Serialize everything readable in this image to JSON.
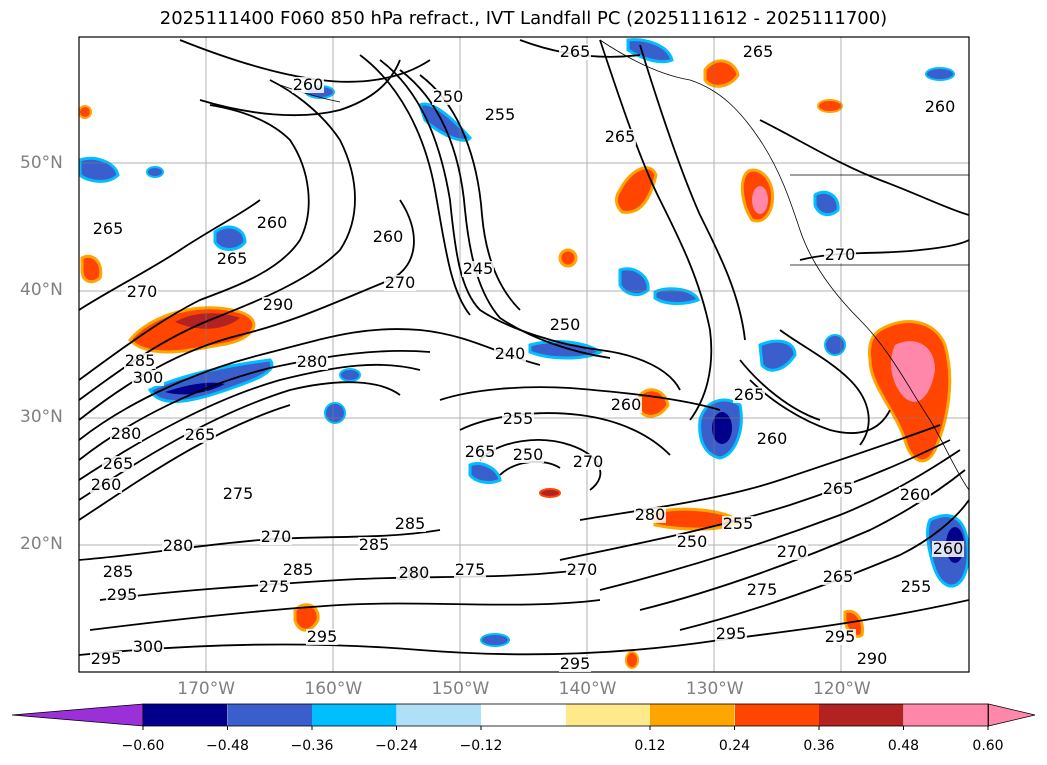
{
  "title": "2025111400 F060 850 hPa refract., IVT Landfall PC (2025111612 - 2025111700)",
  "map": {
    "lat_labels": [
      {
        "text": "50°N",
        "lat": 50
      },
      {
        "text": "40°N",
        "lat": 40
      },
      {
        "text": "30°N",
        "lat": 30
      },
      {
        "text": "20°N",
        "lat": 20
      }
    ],
    "lon_labels": [
      {
        "text": "170°W",
        "lon": -170
      },
      {
        "text": "160°W",
        "lon": -160
      },
      {
        "text": "150°W",
        "lon": -150
      },
      {
        "text": "140°W",
        "lon": -140
      },
      {
        "text": "130°W",
        "lon": -130
      },
      {
        "text": "120°W",
        "lon": -120
      }
    ],
    "contour_labels": [
      {
        "text": "265",
        "pos": "top-center-right"
      },
      {
        "text": "265",
        "pos": "top-right"
      },
      {
        "text": "260",
        "pos": "aleutians"
      },
      {
        "text": "250",
        "pos": "gulf-of-alaska"
      },
      {
        "text": "255",
        "pos": "gulf-of-alaska"
      },
      {
        "text": "265",
        "pos": "alaska-panhandle"
      },
      {
        "text": "260",
        "pos": "top-right-edge"
      },
      {
        "text": "265",
        "pos": "west-edge"
      },
      {
        "text": "260",
        "pos": "west"
      },
      {
        "text": "265",
        "pos": "west"
      },
      {
        "text": "260",
        "pos": "center-north"
      },
      {
        "text": "270",
        "pos": "center-north"
      },
      {
        "text": "245",
        "pos": "center"
      },
      {
        "text": "270",
        "pos": "west"
      },
      {
        "text": "290",
        "pos": "west"
      },
      {
        "text": "250",
        "pos": "center"
      },
      {
        "text": "240",
        "pos": "center"
      },
      {
        "text": "270",
        "pos": "east"
      },
      {
        "text": "280",
        "pos": "west"
      },
      {
        "text": "285",
        "pos": "west"
      },
      {
        "text": "300",
        "pos": "west"
      },
      {
        "text": "255",
        "pos": "center"
      },
      {
        "text": "260",
        "pos": "center-east"
      },
      {
        "text": "265",
        "pos": "east"
      },
      {
        "text": "260",
        "pos": "east"
      },
      {
        "text": "280",
        "pos": "west"
      },
      {
        "text": "265",
        "pos": "west"
      },
      {
        "text": "265",
        "pos": "center"
      },
      {
        "text": "250",
        "pos": "center"
      },
      {
        "text": "270",
        "pos": "center"
      },
      {
        "text": "265",
        "pos": "west"
      },
      {
        "text": "260",
        "pos": "west"
      },
      {
        "text": "275",
        "pos": "west"
      },
      {
        "text": "285",
        "pos": "center-south"
      },
      {
        "text": "270",
        "pos": "west-south"
      },
      {
        "text": "285",
        "pos": "center-south"
      },
      {
        "text": "280",
        "pos": "center-south"
      },
      {
        "text": "265",
        "pos": "east"
      },
      {
        "text": "260",
        "pos": "east"
      },
      {
        "text": "280",
        "pos": "center-east"
      },
      {
        "text": "255",
        "pos": "center-east"
      },
      {
        "text": "250",
        "pos": "center-east"
      },
      {
        "text": "280",
        "pos": "west-south"
      },
      {
        "text": "285",
        "pos": "west-south"
      },
      {
        "text": "275",
        "pos": "west-south"
      },
      {
        "text": "285",
        "pos": "south"
      },
      {
        "text": "280",
        "pos": "south"
      },
      {
        "text": "275",
        "pos": "south"
      },
      {
        "text": "270",
        "pos": "south"
      },
      {
        "text": "270",
        "pos": "south-east"
      },
      {
        "text": "275",
        "pos": "south-east"
      },
      {
        "text": "265",
        "pos": "south-east"
      },
      {
        "text": "255",
        "pos": "south-east-edge"
      },
      {
        "text": "260",
        "pos": "east-edge"
      },
      {
        "text": "295",
        "pos": "west-south"
      },
      {
        "text": "295",
        "pos": "south"
      },
      {
        "text": "300",
        "pos": "south-west"
      },
      {
        "text": "295",
        "pos": "south-west"
      },
      {
        "text": "295",
        "pos": "south-center"
      },
      {
        "text": "295",
        "pos": "south-east"
      },
      {
        "text": "290",
        "pos": "south-east"
      },
      {
        "text": "295",
        "pos": "south-center"
      }
    ]
  },
  "colorbar": {
    "ticks": [
      "−0.60",
      "−0.48",
      "−0.36",
      "−0.24",
      "−0.12",
      "0.12",
      "0.24",
      "0.36",
      "0.48",
      "0.60"
    ],
    "colors": [
      "#9b30d9",
      "#00008b",
      "#3a5fcd",
      "#00bfff",
      "#b0e0f8",
      "#ffffff",
      "#ffe98a",
      "#ffa500",
      "#ff4500",
      "#b22222",
      "#ff88aa",
      "#ff88aa"
    ]
  }
}
